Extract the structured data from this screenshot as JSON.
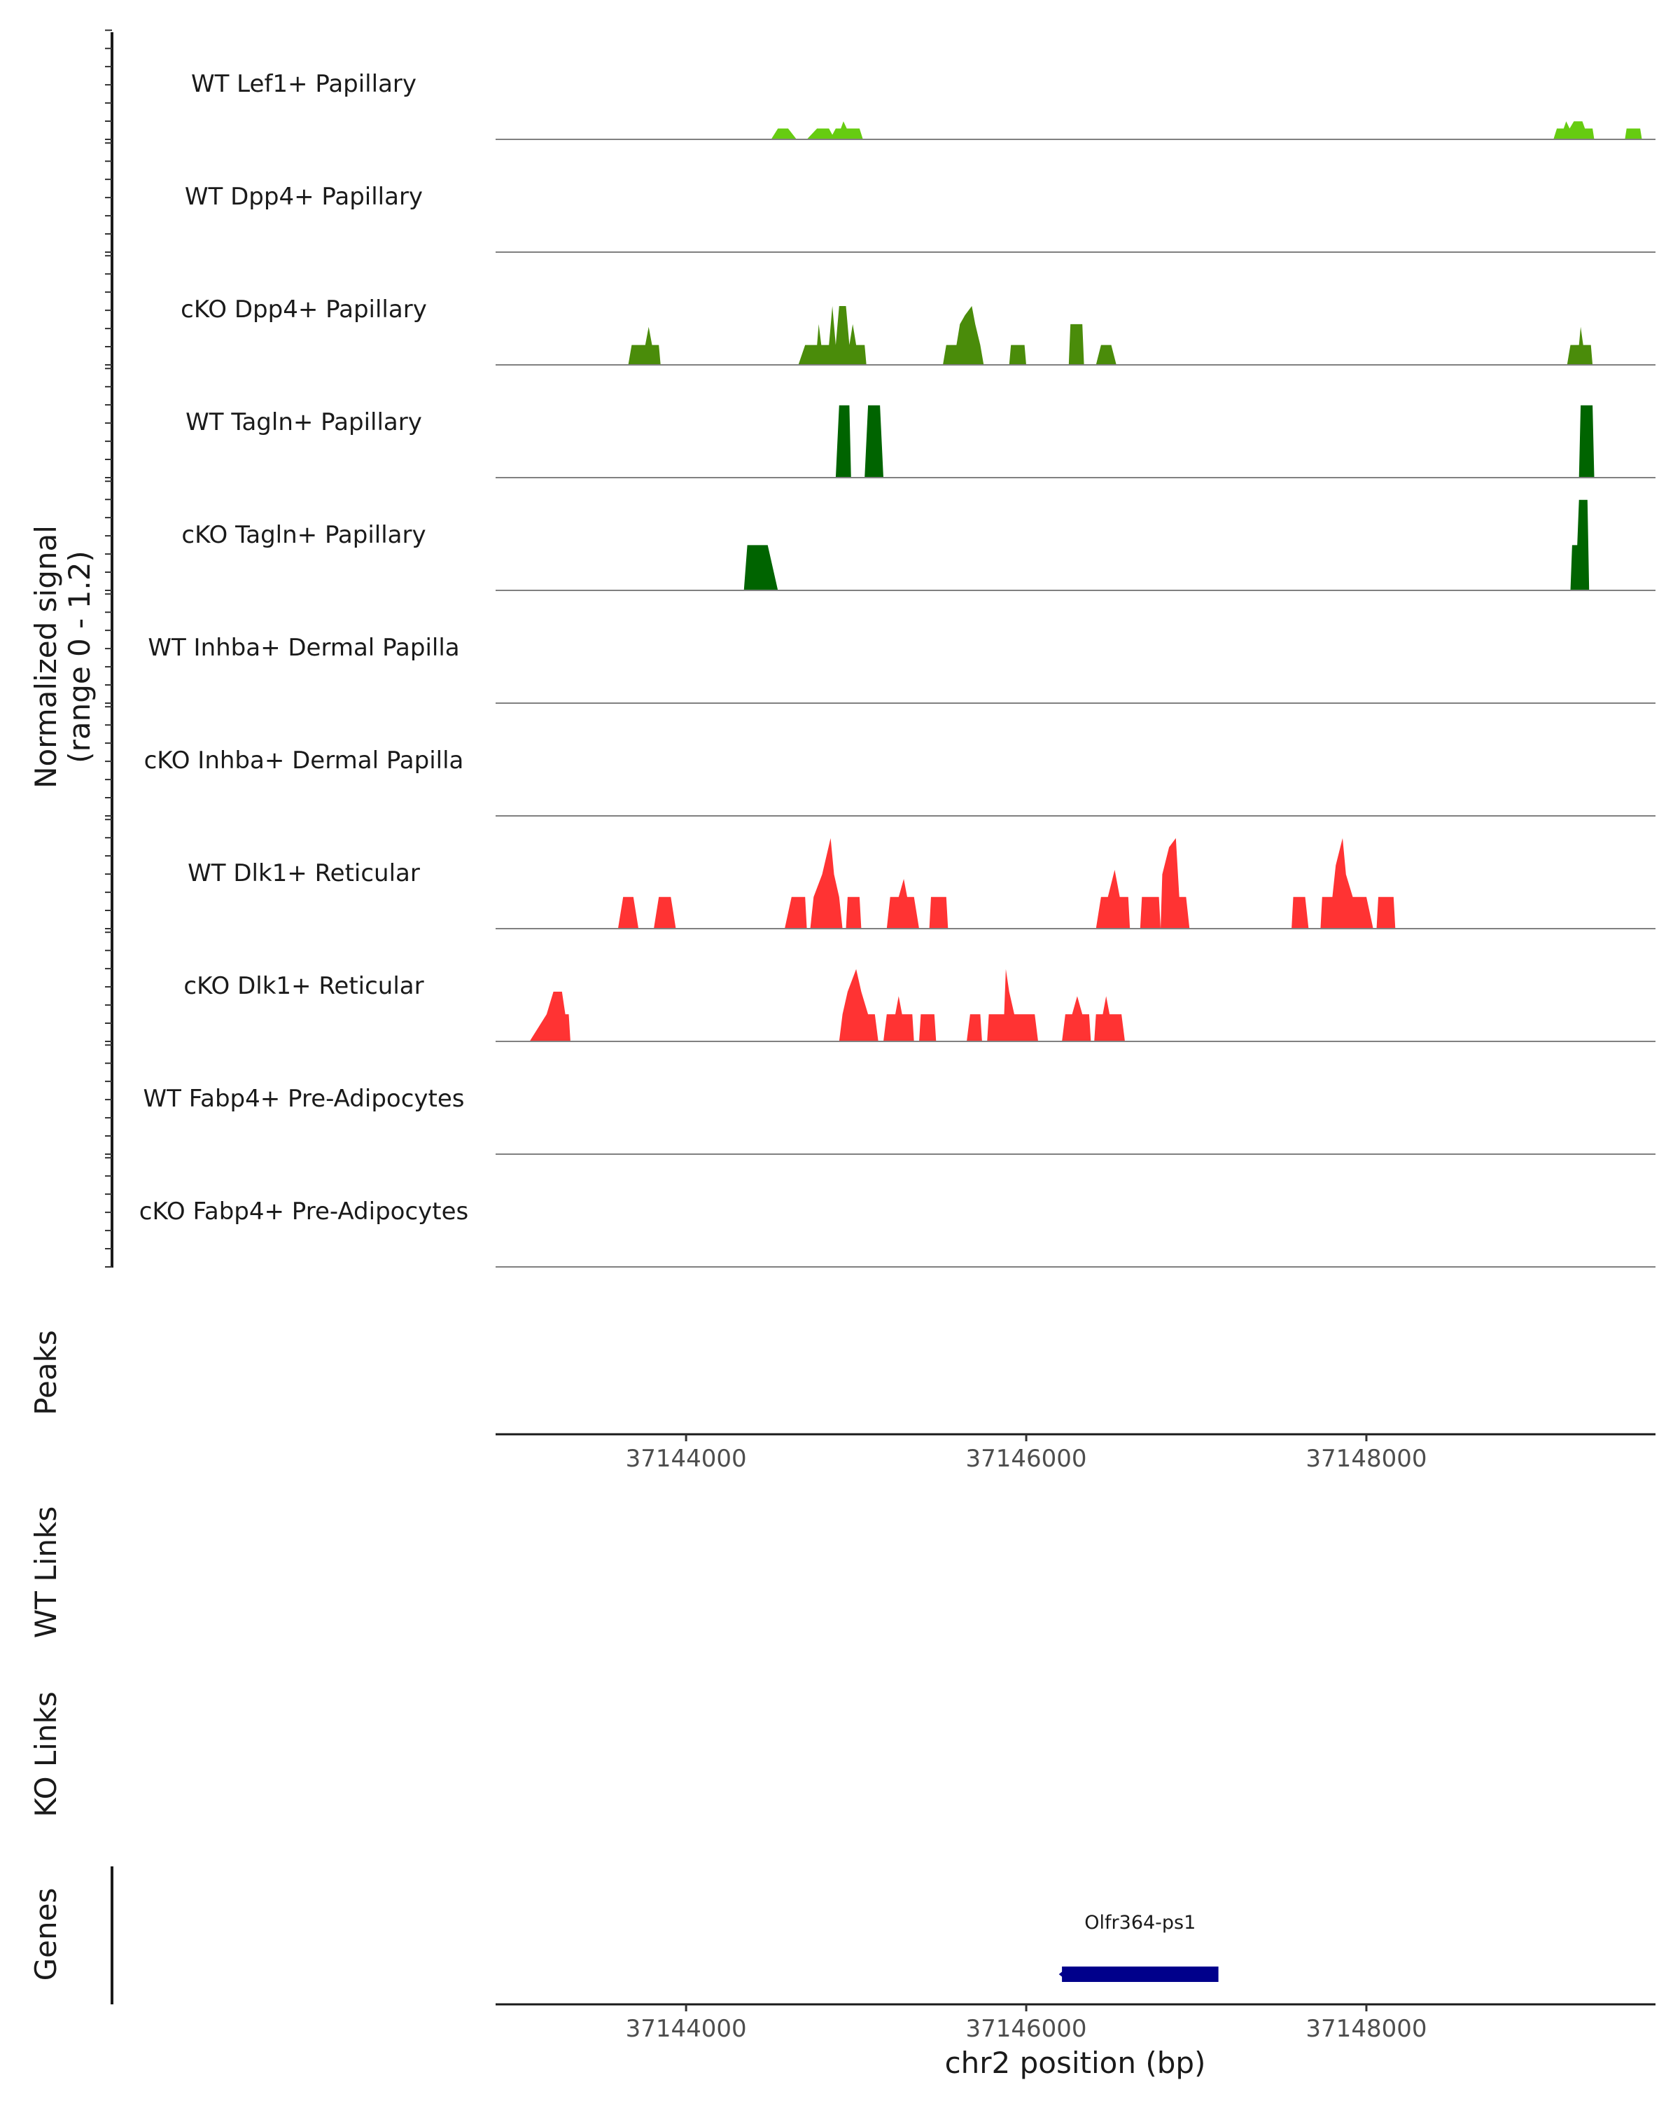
{
  "chart_data": {
    "type": "area",
    "region": {
      "chrom": "chr2",
      "start": 37142880,
      "end": 37149700
    },
    "signal_ylabel": "Normalized signal",
    "signal_ylabel2": "(range 0 - 1.2)",
    "ylim": [
      0,
      1.2
    ],
    "xlabel": "chr2 position (bp)",
    "xticks": [
      37144000,
      37146000,
      37148000
    ],
    "colors": {
      "lightgreen": "#66CC11",
      "midgreen": "#4A8C0A",
      "darkgreen": "#006400",
      "red": "#FF3333",
      "gene": "#00008B"
    },
    "tracks": [
      {
        "label": "WT Lef1+ Papillary",
        "color": "#66CC11",
        "points": [
          [
            37144500,
            0
          ],
          [
            37144540,
            0.12
          ],
          [
            37144600,
            0.12
          ],
          [
            37144650,
            0
          ],
          [
            37144710,
            0
          ],
          [
            37144770,
            0.12
          ],
          [
            37144840,
            0.12
          ],
          [
            37144860,
            0.05
          ],
          [
            37144880,
            0.12
          ],
          [
            37144910,
            0.12
          ],
          [
            37144925,
            0.2
          ],
          [
            37144945,
            0.12
          ],
          [
            37145020,
            0.12
          ],
          [
            37145040,
            0
          ],
          [
            37149100,
            0
          ],
          [
            37149120,
            0.12
          ],
          [
            37149160,
            0.12
          ],
          [
            37149175,
            0.2
          ],
          [
            37149195,
            0.12
          ],
          [
            37149220,
            0.2
          ],
          [
            37149270,
            0.2
          ],
          [
            37149285,
            0.12
          ],
          [
            37149330,
            0.12
          ],
          [
            37149340,
            0
          ],
          [
            37149520,
            0
          ],
          [
            37149530,
            0.12
          ],
          [
            37149610,
            0.12
          ],
          [
            37149620,
            0
          ]
        ]
      },
      {
        "label": "WT Dpp4+ Papillary",
        "color": "#4A8C0A",
        "points": []
      },
      {
        "label": "cKO Dpp4+ Papillary",
        "color": "#4A8C0A",
        "points": [
          [
            37143660,
            0
          ],
          [
            37143680,
            0.22
          ],
          [
            37143760,
            0.22
          ],
          [
            37143780,
            0.42
          ],
          [
            37143800,
            0.22
          ],
          [
            37143840,
            0.22
          ],
          [
            37143850,
            0
          ],
          [
            37144660,
            0
          ],
          [
            37144700,
            0.22
          ],
          [
            37144770,
            0.22
          ],
          [
            37144780,
            0.45
          ],
          [
            37144795,
            0.22
          ],
          [
            37144840,
            0.22
          ],
          [
            37144860,
            0.65
          ],
          [
            37144880,
            0.22
          ],
          [
            37144900,
            0.65
          ],
          [
            37144940,
            0.65
          ],
          [
            37144960,
            0.22
          ],
          [
            37144980,
            0.45
          ],
          [
            37145000,
            0.22
          ],
          [
            37145050,
            0.22
          ],
          [
            37145060,
            0
          ],
          [
            37145510,
            0
          ],
          [
            37145530,
            0.22
          ],
          [
            37145590,
            0.22
          ],
          [
            37145610,
            0.45
          ],
          [
            37145640,
            0.55
          ],
          [
            37145680,
            0.65
          ],
          [
            37145700,
            0.45
          ],
          [
            37145730,
            0.22
          ],
          [
            37145750,
            0
          ],
          [
            37145900,
            0
          ],
          [
            37145910,
            0.22
          ],
          [
            37145990,
            0.22
          ],
          [
            37146000,
            0
          ],
          [
            37146250,
            0
          ],
          [
            37146260,
            0.45
          ],
          [
            37146330,
            0.45
          ],
          [
            37146340,
            0
          ],
          [
            37146410,
            0
          ],
          [
            37146440,
            0.22
          ],
          [
            37146500,
            0.22
          ],
          [
            37146530,
            0
          ],
          [
            37149180,
            0
          ],
          [
            37149200,
            0.22
          ],
          [
            37149250,
            0.22
          ],
          [
            37149260,
            0.42
          ],
          [
            37149275,
            0.22
          ],
          [
            37149320,
            0.22
          ],
          [
            37149330,
            0
          ]
        ]
      },
      {
        "label": "WT Tagln+ Papillary",
        "color": "#006400",
        "points": [
          [
            37144880,
            0
          ],
          [
            37144900,
            0.8
          ],
          [
            37144960,
            0.8
          ],
          [
            37144970,
            0
          ],
          [
            37145050,
            0
          ],
          [
            37145070,
            0.8
          ],
          [
            37145140,
            0.8
          ],
          [
            37145160,
            0
          ],
          [
            37149250,
            0
          ],
          [
            37149260,
            0.8
          ],
          [
            37149330,
            0.8
          ],
          [
            37149340,
            0
          ]
        ]
      },
      {
        "label": "cKO Tagln+ Papillary",
        "color": "#006400",
        "points": [
          [
            37144340,
            0
          ],
          [
            37144360,
            0.5
          ],
          [
            37144480,
            0.5
          ],
          [
            37144540,
            0
          ],
          [
            37149200,
            0
          ],
          [
            37149210,
            0.5
          ],
          [
            37149240,
            0.5
          ],
          [
            37149250,
            1.0
          ],
          [
            37149300,
            1.0
          ],
          [
            37149310,
            0
          ]
        ]
      },
      {
        "label": "WT Inhba+ Dermal Papilla",
        "color": "#006400",
        "points": []
      },
      {
        "label": "cKO Inhba+ Dermal Papilla",
        "color": "#006400",
        "points": []
      },
      {
        "label": "WT Dlk1+ Reticular",
        "color": "#FF3333",
        "points": [
          [
            37143600,
            0
          ],
          [
            37143630,
            0.35
          ],
          [
            37143690,
            0.35
          ],
          [
            37143720,
            0
          ],
          [
            37143810,
            0
          ],
          [
            37143840,
            0.35
          ],
          [
            37143910,
            0.35
          ],
          [
            37143940,
            0
          ],
          [
            37144580,
            0
          ],
          [
            37144620,
            0.35
          ],
          [
            37144700,
            0.35
          ],
          [
            37144710,
            0
          ],
          [
            37144730,
            0
          ],
          [
            37144750,
            0.35
          ],
          [
            37144800,
            0.6
          ],
          [
            37144850,
            1.0
          ],
          [
            37144870,
            0.6
          ],
          [
            37144900,
            0.35
          ],
          [
            37144920,
            0
          ],
          [
            37144940,
            0
          ],
          [
            37144950,
            0.35
          ],
          [
            37145020,
            0.35
          ],
          [
            37145030,
            0
          ],
          [
            37145180,
            0
          ],
          [
            37145200,
            0.35
          ],
          [
            37145250,
            0.35
          ],
          [
            37145280,
            0.55
          ],
          [
            37145300,
            0.35
          ],
          [
            37145340,
            0.35
          ],
          [
            37145370,
            0
          ],
          [
            37145430,
            0
          ],
          [
            37145440,
            0.35
          ],
          [
            37145530,
            0.35
          ],
          [
            37145540,
            0
          ],
          [
            37146410,
            0
          ],
          [
            37146440,
            0.35
          ],
          [
            37146480,
            0.35
          ],
          [
            37146520,
            0.65
          ],
          [
            37146550,
            0.35
          ],
          [
            37146600,
            0.35
          ],
          [
            37146610,
            0
          ],
          [
            37146670,
            0
          ],
          [
            37146680,
            0.35
          ],
          [
            37146780,
            0.35
          ],
          [
            37146790,
            0
          ],
          [
            37146790,
            0
          ],
          [
            37146800,
            0.6
          ],
          [
            37146840,
            0.9
          ],
          [
            37146880,
            1.0
          ],
          [
            37146900,
            0.35
          ],
          [
            37146940,
            0.35
          ],
          [
            37146960,
            0
          ],
          [
            37147560,
            0
          ],
          [
            37147570,
            0.35
          ],
          [
            37147640,
            0.35
          ],
          [
            37147660,
            0
          ],
          [
            37147730,
            0
          ],
          [
            37147740,
            0.35
          ],
          [
            37147800,
            0.35
          ],
          [
            37147820,
            0.7
          ],
          [
            37147860,
            1.0
          ],
          [
            37147880,
            0.6
          ],
          [
            37147920,
            0.35
          ],
          [
            37148000,
            0.35
          ],
          [
            37148040,
            0
          ],
          [
            37148060,
            0
          ],
          [
            37148070,
            0.35
          ],
          [
            37148160,
            0.35
          ],
          [
            37148170,
            0
          ]
        ]
      },
      {
        "label": "cKO Dlk1+ Reticular",
        "color": "#FF3333",
        "points": [
          [
            37143080,
            0
          ],
          [
            37143180,
            0.3
          ],
          [
            37143220,
            0.55
          ],
          [
            37143270,
            0.55
          ],
          [
            37143290,
            0.3
          ],
          [
            37143310,
            0.3
          ],
          [
            37143320,
            0
          ],
          [
            37144900,
            0
          ],
          [
            37144920,
            0.3
          ],
          [
            37144950,
            0.55
          ],
          [
            37145000,
            0.8
          ],
          [
            37145030,
            0.55
          ],
          [
            37145070,
            0.3
          ],
          [
            37145110,
            0.3
          ],
          [
            37145130,
            0
          ],
          [
            37145160,
            0
          ],
          [
            37145180,
            0.3
          ],
          [
            37145230,
            0.3
          ],
          [
            37145250,
            0.5
          ],
          [
            37145270,
            0.3
          ],
          [
            37145330,
            0.3
          ],
          [
            37145340,
            0
          ],
          [
            37145370,
            0
          ],
          [
            37145380,
            0.3
          ],
          [
            37145460,
            0.3
          ],
          [
            37145470,
            0
          ],
          [
            37145650,
            0
          ],
          [
            37145670,
            0.3
          ],
          [
            37145730,
            0.3
          ],
          [
            37145740,
            0
          ],
          [
            37145770,
            0
          ],
          [
            37145780,
            0.3
          ],
          [
            37145870,
            0.3
          ],
          [
            37145880,
            0.8
          ],
          [
            37145900,
            0.55
          ],
          [
            37145930,
            0.3
          ],
          [
            37146050,
            0.3
          ],
          [
            37146070,
            0
          ],
          [
            37146210,
            0
          ],
          [
            37146230,
            0.3
          ],
          [
            37146270,
            0.3
          ],
          [
            37146300,
            0.5
          ],
          [
            37146330,
            0.3
          ],
          [
            37146370,
            0.3
          ],
          [
            37146380,
            0
          ],
          [
            37146400,
            0
          ],
          [
            37146410,
            0.3
          ],
          [
            37146450,
            0.3
          ],
          [
            37146470,
            0.5
          ],
          [
            37146490,
            0.3
          ],
          [
            37146560,
            0.3
          ],
          [
            37146580,
            0
          ]
        ]
      },
      {
        "label": "WT Fabp4+ Pre-Adipocytes",
        "color": "#FF3333",
        "points": []
      },
      {
        "label": "cKO Fabp4+ Pre-Adipocytes",
        "color": "#FF3333",
        "points": []
      }
    ],
    "sections": {
      "peaks_label": "Peaks",
      "wt_links_label": "WT Links",
      "ko_links_label": "KO Links",
      "genes_label": "Genes"
    },
    "genes": [
      {
        "name": "Olfr364-ps1",
        "start": 37146210,
        "end": 37147130,
        "strand": "-"
      }
    ]
  }
}
